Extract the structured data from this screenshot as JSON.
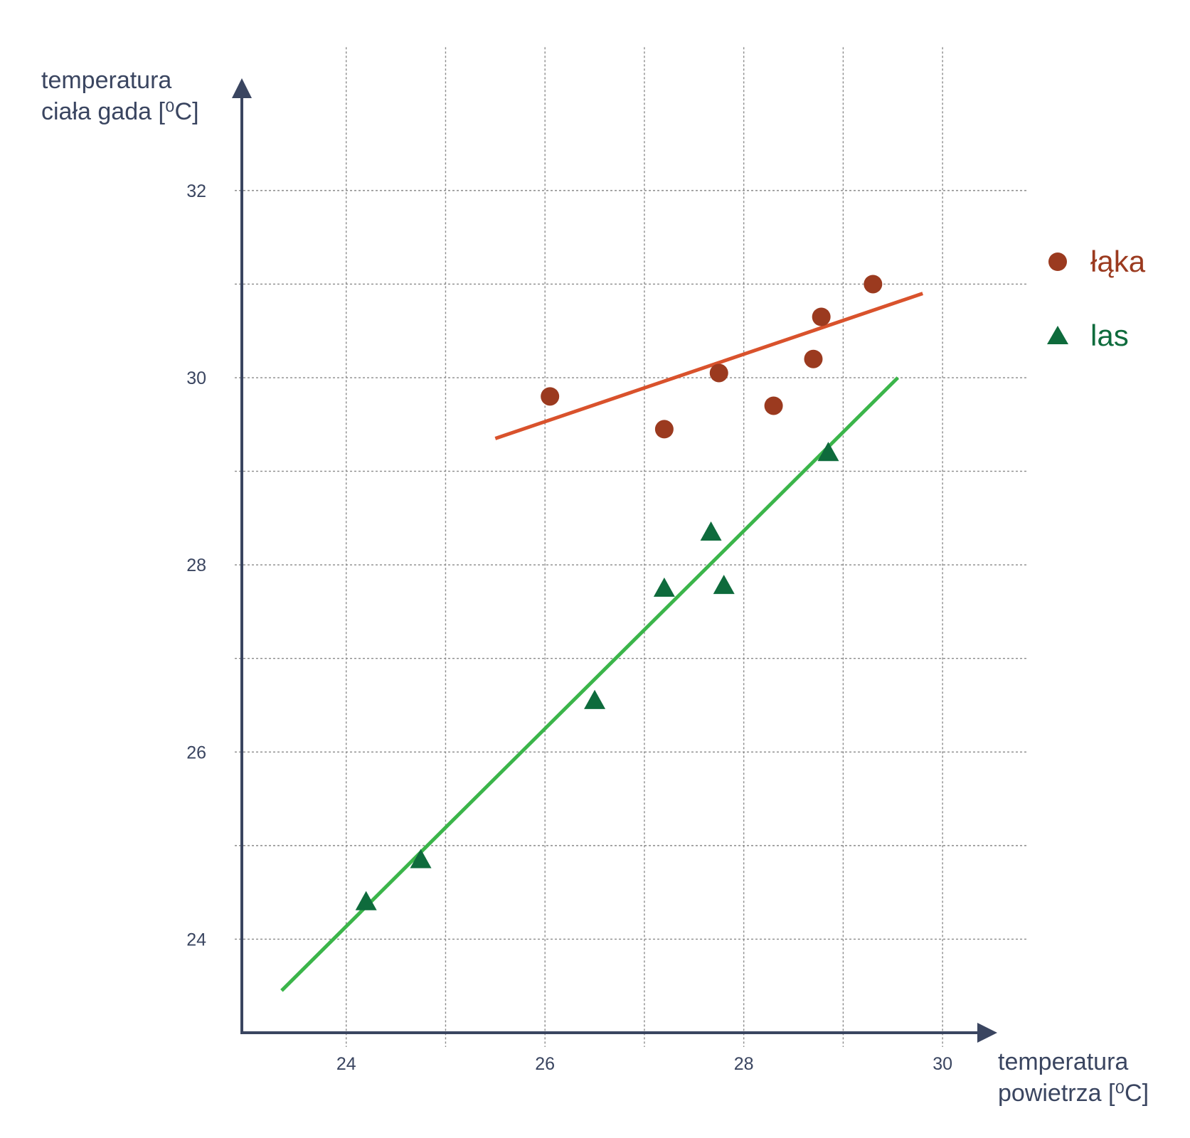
{
  "chart_data": {
    "type": "scatter",
    "xlabel": [
      "temperatura",
      "powietrza [⁰C]"
    ],
    "ylabel": [
      "temperatura",
      "ciała gada [⁰C]"
    ],
    "xlim": [
      22.95,
      30.55
    ],
    "ylim": [
      23.0,
      33.2
    ],
    "x_ticks": [
      24,
      26,
      28,
      30
    ],
    "y_ticks": [
      24,
      26,
      28,
      30,
      32
    ],
    "grid": true,
    "legend_position": "right",
    "series": [
      {
        "name": "łąka",
        "marker": "circle",
        "color": "#9b3a1f",
        "x": [
          26.05,
          27.2,
          27.75,
          28.3,
          28.7,
          28.78,
          29.3
        ],
        "y": [
          29.8,
          29.45,
          30.05,
          29.7,
          30.2,
          30.65,
          31.0
        ],
        "trendline": {
          "color": "#d9522c",
          "x": [
            25.5,
            29.8
          ],
          "y": [
            29.35,
            30.9
          ]
        }
      },
      {
        "name": "las",
        "marker": "triangle",
        "color": "#0e6b3c",
        "x": [
          24.2,
          24.75,
          26.5,
          27.2,
          27.67,
          27.8,
          28.85
        ],
        "y": [
          24.4,
          24.85,
          26.55,
          27.75,
          28.35,
          27.78,
          29.2
        ],
        "trendline": {
          "color": "#3bb54a",
          "x": [
            23.35,
            29.55
          ],
          "y": [
            23.45,
            30.0
          ]
        }
      }
    ]
  }
}
